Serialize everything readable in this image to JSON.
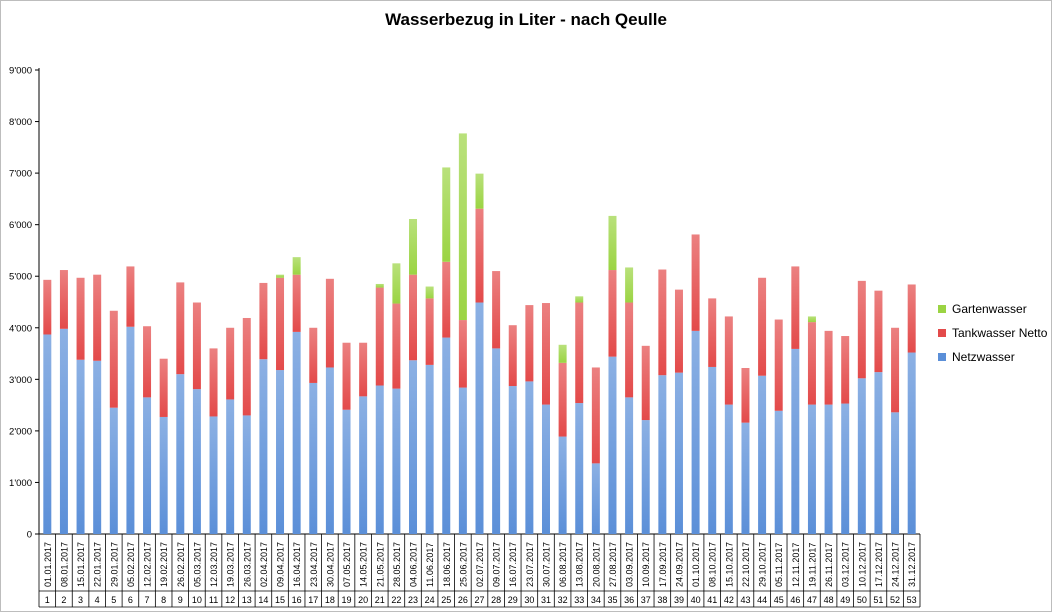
{
  "chart_data": {
    "type": "bar",
    "stacked": true,
    "title": "Wasserbezug in Liter - nach Qeulle",
    "xlabel": "",
    "ylabel": "",
    "ylim": [
      0,
      9000
    ],
    "ytick_labels": [
      "0",
      "1'000",
      "2'000",
      "3'000",
      "4'000",
      "5'000",
      "6'000",
      "7'000",
      "8'000",
      "9'000"
    ],
    "grid": false,
    "legend_position": "right",
    "week_numbers": [
      "1",
      "2",
      "3",
      "4",
      "5",
      "6",
      "7",
      "8",
      "9",
      "10",
      "11",
      "12",
      "13",
      "14",
      "15",
      "16",
      "17",
      "18",
      "19",
      "20",
      "21",
      "22",
      "23",
      "24",
      "25",
      "26",
      "27",
      "28",
      "29",
      "30",
      "31",
      "32",
      "33",
      "34",
      "35",
      "36",
      "37",
      "38",
      "39",
      "40",
      "41",
      "42",
      "43",
      "44",
      "45",
      "46",
      "47",
      "48",
      "49",
      "50",
      "51",
      "52",
      "53"
    ],
    "dates": [
      "01.01.2017",
      "08.01.2017",
      "15.01.2017",
      "22.01.2017",
      "29.01.2017",
      "05.02.2017",
      "12.02.2017",
      "19.02.2017",
      "26.02.2017",
      "05.03.2017",
      "12.03.2017",
      "19.03.2017",
      "26.03.2017",
      "02.04.2017",
      "09.04.2017",
      "16.04.2017",
      "23.04.2017",
      "30.04.2017",
      "07.05.2017",
      "14.05.2017",
      "21.05.2017",
      "28.05.2017",
      "04.06.2017",
      "11.06.2017",
      "18.06.2017",
      "25.06.2017",
      "02.07.2017",
      "09.07.2017",
      "16.07.2017",
      "23.07.2017",
      "30.07.2017",
      "06.08.2017",
      "13.08.2017",
      "20.08.2017",
      "27.08.2017",
      "03.09.2017",
      "10.09.2017",
      "17.09.2017",
      "24.09.2017",
      "01.10.2017",
      "08.10.2017",
      "15.10.2017",
      "22.10.2017",
      "29.10.2017",
      "05.11.2017",
      "12.11.2017",
      "19.11.2017",
      "26.11.2017",
      "03.12.2017",
      "10.12.2017",
      "17.12.2017",
      "24.12.2017",
      "31.12.2017"
    ],
    "series": [
      {
        "name": "Netzwasser",
        "color": "#5b8fd8",
        "values": [
          3870,
          3980,
          3380,
          3360,
          2450,
          4020,
          2650,
          2270,
          3100,
          2810,
          2280,
          2610,
          2300,
          3390,
          3180,
          3920,
          2930,
          3230,
          2410,
          2670,
          2880,
          2820,
          3370,
          3280,
          3810,
          2840,
          4490,
          3600,
          2870,
          2960,
          2510,
          1890,
          2540,
          1370,
          3440,
          2650,
          2210,
          3080,
          3130,
          3940,
          3240,
          2510,
          2160,
          3070,
          2390,
          3590,
          2510,
          2510,
          2530,
          3020,
          3140,
          2360,
          3520
        ]
      },
      {
        "name": "Tankwasser Netto",
        "color": "#e34a4a",
        "values": [
          1060,
          1140,
          1590,
          1670,
          1880,
          1170,
          1380,
          1130,
          1780,
          1680,
          1320,
          1390,
          1890,
          1480,
          1790,
          1110,
          1070,
          1720,
          1300,
          1040,
          1900,
          1650,
          1660,
          1290,
          1470,
          1310,
          1820,
          1500,
          1180,
          1480,
          1970,
          1430,
          1950,
          1860,
          1680,
          1840,
          1440,
          2050,
          1610,
          1870,
          1330,
          1710,
          1060,
          1900,
          1770,
          1600,
          1600,
          1430,
          1310,
          1890,
          1580,
          1640,
          1320
        ]
      },
      {
        "name": "Gartenwasser",
        "color": "#9bd443",
        "values": [
          0,
          0,
          0,
          0,
          0,
          0,
          0,
          0,
          0,
          0,
          0,
          0,
          0,
          0,
          60,
          340,
          0,
          0,
          0,
          0,
          70,
          780,
          1080,
          230,
          1830,
          3620,
          680,
          0,
          0,
          0,
          0,
          350,
          120,
          0,
          1050,
          680,
          0,
          0,
          0,
          0,
          0,
          0,
          0,
          0,
          0,
          0,
          110,
          0,
          0,
          0,
          0,
          0,
          0
        ]
      }
    ]
  }
}
